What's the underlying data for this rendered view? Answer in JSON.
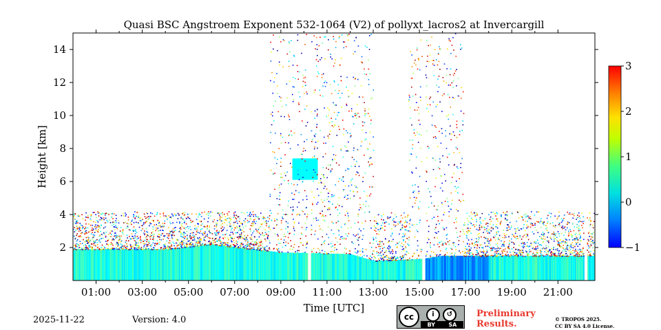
{
  "chart_data": {
    "type": "heatmap",
    "title": "Quasi BSC Angstroem Exponent 532-1064 (V2) of pollyxt_lacros2 at Invercargill",
    "xlabel": "Time [UTC]",
    "ylabel": "Height [km]",
    "xlim": [
      0.0,
      22.6
    ],
    "ylim": [
      0,
      15
    ],
    "x_ticks": [
      "01:00",
      "03:00",
      "05:00",
      "07:00",
      "09:00",
      "11:00",
      "13:00",
      "15:00",
      "17:00",
      "19:00",
      "21:00"
    ],
    "x_tick_values": [
      1,
      3,
      5,
      7,
      9,
      11,
      13,
      15,
      17,
      19,
      21
    ],
    "y_ticks": [
      "2",
      "4",
      "6",
      "8",
      "10",
      "12",
      "14"
    ],
    "y_tick_values": [
      2,
      4,
      6,
      8,
      10,
      12,
      14
    ],
    "colorbar": {
      "min": -1,
      "max": 3,
      "ticks": [
        "−1",
        "0",
        "1",
        "2",
        "3"
      ],
      "tick_values": [
        -1,
        0,
        1,
        2,
        3
      ],
      "colormap": "jet"
    },
    "features": {
      "boundary_layer_top_km": [
        [
          0,
          1.9
        ],
        [
          4,
          1.9
        ],
        [
          6,
          2.2
        ],
        [
          9,
          1.7
        ],
        [
          12,
          1.6
        ],
        [
          13,
          1.2
        ],
        [
          15,
          1.3
        ],
        [
          16,
          1.5
        ],
        [
          18,
          1.5
        ],
        [
          22.6,
          1.5
        ]
      ],
      "boundary_layer_value": 0.6,
      "cloud_layer": {
        "start": 9.5,
        "end": 10.6,
        "bottom_km": 6.1,
        "top_km": 7.4,
        "value": 0.5
      },
      "data_gaps": [
        [
          10.15,
          10.3
        ],
        [
          15.1,
          15.25
        ],
        [
          22.1,
          22.25
        ]
      ],
      "noise_columns": [
        [
          8.5,
          13.0
        ],
        [
          14.5,
          16.9
        ]
      ]
    }
  },
  "footer": {
    "date": "2025-11-22",
    "version": "Version: 4.0",
    "cc_label": "cc",
    "cc_by": "BY",
    "cc_sa": "SA",
    "preliminary_line1": "Preliminary",
    "preliminary_line2": "Results.",
    "copyright_line1": "© TROPOS 2025.",
    "copyright_line2": "CC BY SA 4.0 License."
  }
}
